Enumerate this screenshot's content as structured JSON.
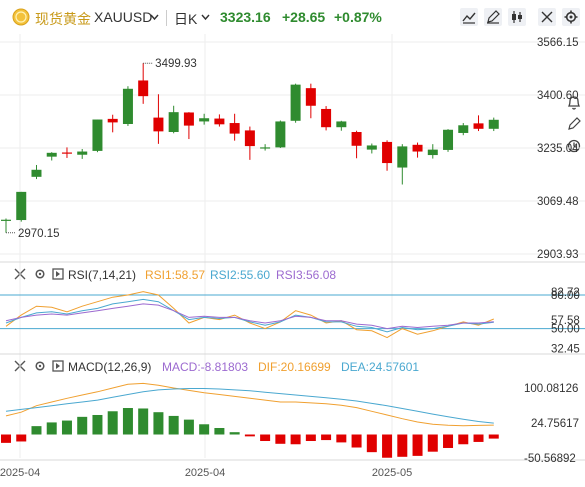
{
  "header": {
    "title": "现货黄金",
    "symbol": "XAUUSD",
    "symbol_chevron_icon": "chevron-down-icon",
    "period": "日K",
    "period_chevron_icon": "chevron-down-icon",
    "price": "3323.16",
    "change": "+28.65",
    "change_pct": "+0.87%",
    "up_color": "#2f8b2f",
    "down_color": "#e00000",
    "toolbar_icons": [
      "line-tool-icon",
      "pencil-icon",
      "candle-style-icon",
      "expand-icon",
      "settings-icon"
    ]
  },
  "rsi_header": {
    "label": "RSI(7,14,21)",
    "rsi1": "RSI1:58.57",
    "rsi2": "RSI2:55.60",
    "rsi3": "RSI3:56.08"
  },
  "macd_header": {
    "label": "MACD(12,26,9)",
    "macd": "MACD:-8.81803",
    "dif": "DIF:20.16699",
    "dea": "DEA:24.57601"
  },
  "chart_data": {
    "type": "candlestick",
    "colors": {
      "up": "#2f8b2f",
      "down": "#e00000"
    },
    "price_axis": {
      "ticks": [
        "3566.15",
        "3400.60",
        "3235.04",
        "3069.48",
        "2903.93"
      ],
      "tick_values": [
        3566.15,
        3400.6,
        3235.04,
        3069.48,
        2903.93
      ]
    },
    "annotations": {
      "high": "3499.93",
      "low": "2970.15"
    },
    "x_labels": [
      "2025-04",
      "2025-04",
      "2025-05"
    ],
    "candles": [
      {
        "o": 3010,
        "h": 3015,
        "l": 2970.15,
        "c": 3011
      },
      {
        "o": 3010,
        "h": 3098,
        "l": 3005,
        "c": 3098
      },
      {
        "o": 3145,
        "h": 3182,
        "l": 3138,
        "c": 3167
      },
      {
        "o": 3208,
        "h": 3222,
        "l": 3196,
        "c": 3220
      },
      {
        "o": 3221,
        "h": 3237,
        "l": 3204,
        "c": 3219
      },
      {
        "o": 3214,
        "h": 3232,
        "l": 3201,
        "c": 3224
      },
      {
        "o": 3226,
        "h": 3324,
        "l": 3222,
        "c": 3324
      },
      {
        "o": 3326,
        "h": 3339,
        "l": 3284,
        "c": 3315
      },
      {
        "o": 3310,
        "h": 3428,
        "l": 3304,
        "c": 3420
      },
      {
        "o": 3446,
        "h": 3499.93,
        "l": 3373,
        "c": 3397
      },
      {
        "o": 3330,
        "h": 3403,
        "l": 3248,
        "c": 3287
      },
      {
        "o": 3285,
        "h": 3367,
        "l": 3281,
        "c": 3347
      },
      {
        "o": 3346,
        "h": 3347,
        "l": 3263,
        "c": 3305
      },
      {
        "o": 3318,
        "h": 3342,
        "l": 3308,
        "c": 3328
      },
      {
        "o": 3327,
        "h": 3340,
        "l": 3302,
        "c": 3309
      },
      {
        "o": 3313,
        "h": 3342,
        "l": 3258,
        "c": 3280
      },
      {
        "o": 3290,
        "h": 3302,
        "l": 3198,
        "c": 3241
      },
      {
        "o": 3235,
        "h": 3247,
        "l": 3227,
        "c": 3237
      },
      {
        "o": 3237,
        "h": 3321,
        "l": 3235,
        "c": 3318
      },
      {
        "o": 3320,
        "h": 3436,
        "l": 3314,
        "c": 3433
      },
      {
        "o": 3422,
        "h": 3436,
        "l": 3328,
        "c": 3367
      },
      {
        "o": 3357,
        "h": 3366,
        "l": 3290,
        "c": 3300
      },
      {
        "o": 3300,
        "h": 3320,
        "l": 3289,
        "c": 3318
      },
      {
        "o": 3285,
        "h": 3289,
        "l": 3203,
        "c": 3242
      },
      {
        "o": 3230,
        "h": 3249,
        "l": 3218,
        "c": 3243
      },
      {
        "o": 3254,
        "h": 3259,
        "l": 3164,
        "c": 3188
      },
      {
        "o": 3174,
        "h": 3247,
        "l": 3121,
        "c": 3240
      },
      {
        "o": 3245,
        "h": 3252,
        "l": 3205,
        "c": 3224
      },
      {
        "o": 3213,
        "h": 3247,
        "l": 3202,
        "c": 3230
      },
      {
        "o": 3229,
        "h": 3294,
        "l": 3223,
        "c": 3292
      },
      {
        "o": 3282,
        "h": 3313,
        "l": 3275,
        "c": 3306
      },
      {
        "o": 3312,
        "h": 3337,
        "l": 3288,
        "c": 3295
      },
      {
        "o": 3295,
        "h": 3330,
        "l": 3288,
        "c": 3323.16
      }
    ],
    "rsi": {
      "axis_ticks": [
        "80.00",
        "82.72",
        "57.58",
        "50.00",
        "32.45"
      ],
      "tick_values": [
        80.0,
        82.72,
        57.58,
        50.0,
        32.45
      ],
      "range": [
        30,
        88
      ],
      "series": [
        {
          "color": "#f0a030",
          "values": [
            52,
            62,
            70,
            69,
            65,
            70,
            74,
            78,
            80,
            83,
            80,
            68,
            55,
            60,
            58,
            62,
            55,
            50,
            56,
            66,
            62,
            55,
            57,
            49,
            48,
            42,
            50,
            45,
            48,
            52,
            56,
            53,
            58.57
          ]
        },
        {
          "color": "#4aa8d0",
          "values": [
            55,
            60,
            64,
            65,
            63,
            66,
            68,
            72,
            74,
            76,
            74,
            66,
            58,
            60,
            59,
            60,
            56,
            53,
            56,
            62,
            60,
            56,
            56,
            52,
            51,
            47,
            51,
            49,
            50,
            52,
            55,
            54,
            55.6
          ]
        },
        {
          "color": "#9c6ad0",
          "values": [
            57,
            60,
            62,
            63,
            62,
            64,
            66,
            68,
            70,
            72,
            71,
            66,
            60,
            61,
            60,
            60,
            57,
            55,
            57,
            61,
            60,
            57,
            57,
            54,
            53,
            50,
            52,
            51,
            52,
            53,
            55,
            55,
            56.08
          ]
        }
      ]
    },
    "macd": {
      "axis_ticks": [
        "100.08126",
        "24.75617",
        "-50.56892"
      ],
      "tick_values": [
        100.08126,
        24.75617,
        -50.56892
      ],
      "hist": [
        -18,
        -15,
        18,
        26,
        30,
        38,
        42,
        50,
        57,
        56,
        48,
        40,
        32,
        22,
        14,
        5,
        -4,
        -14,
        -20,
        -21,
        -14,
        -12,
        -17,
        -28,
        -38,
        -50,
        -48,
        -46,
        -37,
        -29,
        -21,
        -16,
        -8.81803
      ],
      "dif": [
        40,
        48,
        62,
        70,
        78,
        85,
        92,
        100,
        108,
        110,
        106,
        100,
        95,
        90,
        86,
        82,
        78,
        74,
        70,
        70,
        68,
        66,
        63,
        58,
        50,
        42,
        34,
        27,
        22,
        20,
        19,
        19.5,
        20.16699
      ],
      "dea": [
        50,
        54,
        58,
        62,
        66,
        70,
        74,
        80,
        86,
        92,
        96,
        98,
        99,
        99,
        98,
        96,
        94,
        91,
        88,
        85,
        82,
        79,
        76,
        72,
        67,
        62,
        56,
        50,
        44,
        38,
        33,
        28,
        24.57601
      ],
      "dif_color": "#f0a030",
      "dea_color": "#4aa8d0"
    }
  }
}
